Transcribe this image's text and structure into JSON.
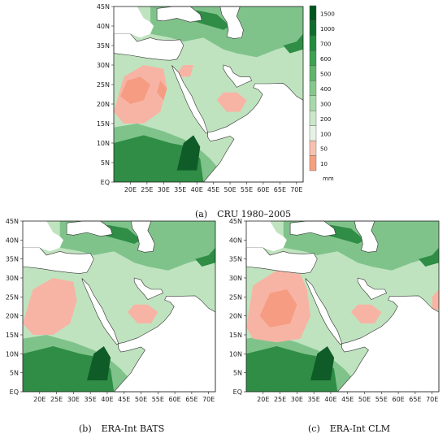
{
  "panels": [
    {
      "id": "a",
      "tag": "(a)",
      "caption": "CRU 1980–2005"
    },
    {
      "id": "b",
      "tag": "(b)",
      "caption": "ERA-Int BATS"
    },
    {
      "id": "c",
      "tag": "(c)",
      "caption": "ERA-Int CLM"
    }
  ],
  "axes": {
    "lat_labels": [
      "EQ",
      "5N",
      "10N",
      "15N",
      "20N",
      "25N",
      "30N",
      "35N",
      "40N",
      "45N"
    ],
    "lon_labels": [
      "20E",
      "25E",
      "30E",
      "35E",
      "40E",
      "45E",
      "50E",
      "55E",
      "60E",
      "65E",
      "70E"
    ]
  },
  "legend": {
    "levels": [
      "10",
      "50",
      "100",
      "200",
      "300",
      "400",
      "500",
      "600",
      "700",
      "1000",
      "1500"
    ],
    "unit": "mm",
    "colors": [
      "#f7a07e",
      "#f7c1b0",
      "#e6f2e4",
      "#c9e8c8",
      "#a7d8aa",
      "#84c88c",
      "#5fb56b",
      "#3ea052",
      "#238b3f",
      "#106e2c",
      "#00561f"
    ]
  },
  "colors": {
    "sea": "#ffffff",
    "arid": "#f7b4a4",
    "very_arid": "#f59c82",
    "light_green": "#bfe3bf",
    "mid_green": "#7fc38b",
    "dark_green": "#2f8d45",
    "deep_green": "#0f5c28",
    "coast": "#333333"
  }
}
